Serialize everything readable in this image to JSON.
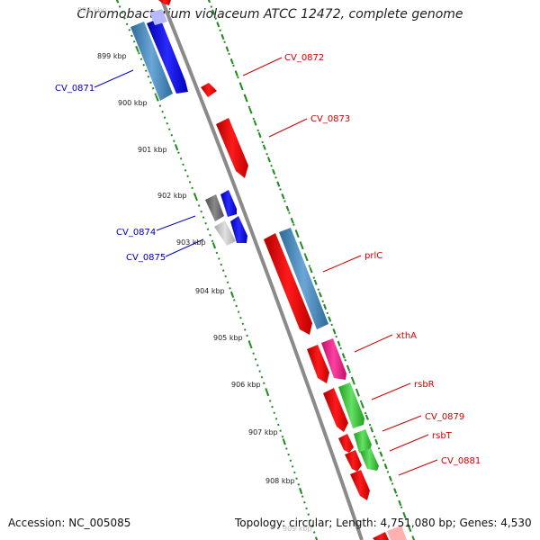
{
  "title": "Chromobacterium violaceum ATCC 12472, complete genome",
  "footer": {
    "accession": "Accession: NC_005085",
    "topology": "Topology: circular; Length: 4,751,080 bp; Genes: 4,530"
  },
  "kbp_labels": [
    "898 kbp",
    "899 kbp",
    "900 kbp",
    "901 kbp",
    "902 kbp",
    "903 kbp",
    "904 kbp",
    "905 kbp",
    "906 kbp",
    "907 kbp",
    "908 kbp",
    "909 kbp"
  ],
  "gene_labels": [
    {
      "text": "CV_0871",
      "strand": "minus"
    },
    {
      "text": "CV_0872",
      "strand": "plus"
    },
    {
      "text": "CV_0873",
      "strand": "plus"
    },
    {
      "text": "CV_0874",
      "strand": "minus"
    },
    {
      "text": "CV_0875",
      "strand": "minus"
    },
    {
      "text": "prlC",
      "strand": "plus"
    },
    {
      "text": "xthA",
      "strand": "plus"
    },
    {
      "text": "rsbR",
      "strand": "plus"
    },
    {
      "text": "CV_0879",
      "strand": "plus"
    },
    {
      "text": "rsbT",
      "strand": "plus"
    },
    {
      "text": "CV_0881",
      "strand": "plus"
    }
  ],
  "colors": {
    "plus_strand_gene": "#ff0000",
    "minus_strand_gene": "#0000ff",
    "plus_label": "#cc0000",
    "minus_label": "#0000aa",
    "cds_blue": "#4682b4",
    "gene_magenta": "#ff1493",
    "gene_green": "#32cd32",
    "gene_gray": "#707070",
    "backbone": "#8a8a8a",
    "ticks": "#228b22"
  }
}
